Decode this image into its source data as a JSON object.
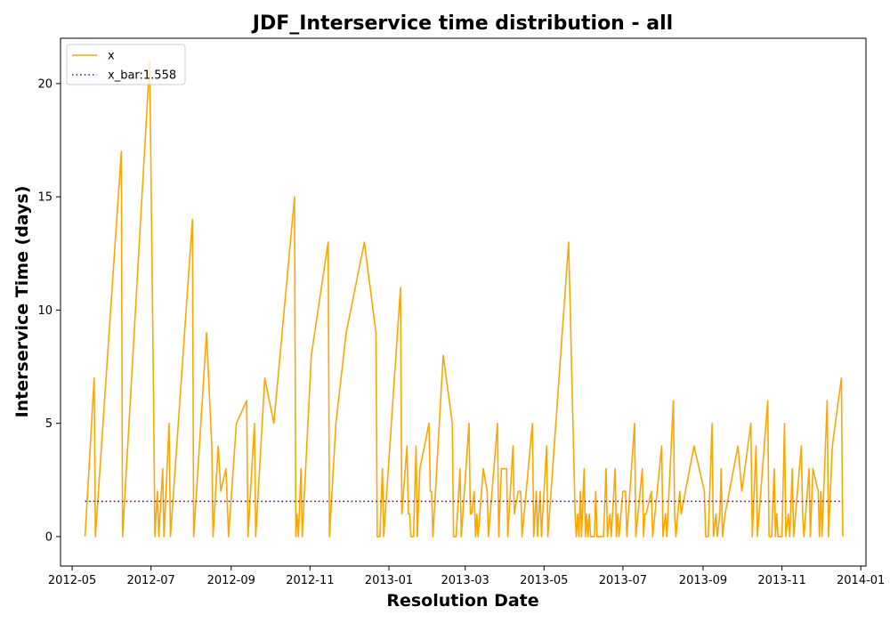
{
  "chart_data": {
    "type": "line",
    "title": "JDF_Interservice time distribution - all",
    "xlabel": "Resolution Date",
    "ylabel": "Interservice Time (days)",
    "xlim": [
      "2012-04-22",
      "2014-01-05"
    ],
    "ylim": [
      -1.3,
      22
    ],
    "x_ticks": [
      "2012-05",
      "2012-07",
      "2012-09",
      "2012-11",
      "2013-01",
      "2013-03",
      "2013-05",
      "2013-07",
      "2013-09",
      "2013-11",
      "2014-01"
    ],
    "y_ticks": [
      0,
      5,
      10,
      15,
      20
    ],
    "grid": false,
    "legend": {
      "position": "top-left",
      "entries": [
        "x",
        "x_bar:1.558"
      ]
    },
    "colors": {
      "x": "#ffa500",
      "x_bar": "#800080"
    },
    "series": [
      {
        "name": "x",
        "style": "solid",
        "points": [
          [
            "2012-05-11",
            0
          ],
          [
            "2012-05-18",
            7
          ],
          [
            "2012-05-19",
            0
          ],
          [
            "2012-06-08",
            17
          ],
          [
            "2012-06-09",
            0
          ],
          [
            "2012-06-30",
            21
          ],
          [
            "2012-07-03",
            6
          ],
          [
            "2012-07-04",
            0
          ],
          [
            "2012-07-06",
            2
          ],
          [
            "2012-07-07",
            0
          ],
          [
            "2012-07-10",
            3
          ],
          [
            "2012-07-11",
            0
          ],
          [
            "2012-07-15",
            5
          ],
          [
            "2012-07-16",
            0
          ],
          [
            "2012-08-02",
            14
          ],
          [
            "2012-08-03",
            0
          ],
          [
            "2012-08-13",
            9
          ],
          [
            "2012-08-17",
            4
          ],
          [
            "2012-08-18",
            0
          ],
          [
            "2012-08-22",
            4
          ],
          [
            "2012-08-24",
            2
          ],
          [
            "2012-08-28",
            3
          ],
          [
            "2012-08-30",
            0
          ],
          [
            "2012-09-05",
            5
          ],
          [
            "2012-09-13",
            6
          ],
          [
            "2012-09-14",
            0
          ],
          [
            "2012-09-19",
            5
          ],
          [
            "2012-09-20",
            0
          ],
          [
            "2012-09-25",
            5
          ],
          [
            "2012-09-27",
            7
          ],
          [
            "2012-10-04",
            5
          ],
          [
            "2012-10-20",
            15
          ],
          [
            "2012-10-21",
            0
          ],
          [
            "2012-10-22",
            1
          ],
          [
            "2012-10-23",
            0
          ],
          [
            "2012-10-25",
            3
          ],
          [
            "2012-10-26",
            0
          ],
          [
            "2012-11-02",
            8
          ],
          [
            "2012-11-15",
            13
          ],
          [
            "2012-11-16",
            0
          ],
          [
            "2012-11-21",
            5
          ],
          [
            "2012-11-29",
            9
          ],
          [
            "2012-12-13",
            13
          ],
          [
            "2012-12-22",
            9
          ],
          [
            "2012-12-23",
            0
          ],
          [
            "2012-12-25",
            0
          ],
          [
            "2012-12-27",
            3
          ],
          [
            "2012-12-28",
            0
          ],
          [
            "2013-01-10",
            11
          ],
          [
            "2013-01-11",
            1
          ],
          [
            "2013-01-15",
            4
          ],
          [
            "2013-01-16",
            1
          ],
          [
            "2013-01-17",
            1
          ],
          [
            "2013-01-18",
            0
          ],
          [
            "2013-01-20",
            0
          ],
          [
            "2013-01-22",
            4
          ],
          [
            "2013-01-23",
            0
          ],
          [
            "2013-01-25",
            3
          ],
          [
            "2013-02-01",
            5
          ],
          [
            "2013-02-02",
            2
          ],
          [
            "2013-02-03",
            2
          ],
          [
            "2013-02-04",
            0
          ],
          [
            "2013-02-12",
            8
          ],
          [
            "2013-02-19",
            5
          ],
          [
            "2013-02-20",
            0
          ],
          [
            "2013-02-22",
            0
          ],
          [
            "2013-02-25",
            3
          ],
          [
            "2013-02-26",
            0
          ],
          [
            "2013-03-04",
            5
          ],
          [
            "2013-03-05",
            1
          ],
          [
            "2013-03-06",
            1
          ],
          [
            "2013-03-08",
            2
          ],
          [
            "2013-03-09",
            0
          ],
          [
            "2013-03-10",
            1
          ],
          [
            "2013-03-11",
            0
          ],
          [
            "2013-03-15",
            3
          ],
          [
            "2013-03-18",
            2
          ],
          [
            "2013-03-19",
            0
          ],
          [
            "2013-03-26",
            5
          ],
          [
            "2013-03-27",
            0
          ],
          [
            "2013-03-29",
            3
          ],
          [
            "2013-04-02",
            3
          ],
          [
            "2013-04-03",
            0
          ],
          [
            "2013-04-07",
            4
          ],
          [
            "2013-04-08",
            1
          ],
          [
            "2013-04-11",
            2
          ],
          [
            "2013-04-13",
            2
          ],
          [
            "2013-04-14",
            0
          ],
          [
            "2013-04-22",
            5
          ],
          [
            "2013-04-23",
            0
          ],
          [
            "2013-04-25",
            2
          ],
          [
            "2013-04-26",
            0
          ],
          [
            "2013-04-28",
            2
          ],
          [
            "2013-04-29",
            0
          ],
          [
            "2013-05-03",
            4
          ],
          [
            "2013-05-04",
            0
          ],
          [
            "2013-05-20",
            13
          ],
          [
            "2013-05-25",
            1
          ],
          [
            "2013-05-26",
            0
          ],
          [
            "2013-05-27",
            1
          ],
          [
            "2013-05-28",
            0
          ],
          [
            "2013-05-29",
            2
          ],
          [
            "2013-05-30",
            0
          ],
          [
            "2013-06-01",
            3
          ],
          [
            "2013-06-02",
            0
          ],
          [
            "2013-06-03",
            1
          ],
          [
            "2013-06-04",
            0
          ],
          [
            "2013-06-05",
            1
          ],
          [
            "2013-06-06",
            0
          ],
          [
            "2013-06-09",
            0
          ],
          [
            "2013-06-10",
            2
          ],
          [
            "2013-06-11",
            0
          ],
          [
            "2013-06-16",
            0
          ],
          [
            "2013-06-18",
            3
          ],
          [
            "2013-06-19",
            0
          ],
          [
            "2013-06-21",
            1
          ],
          [
            "2013-06-22",
            0
          ],
          [
            "2013-06-25",
            3
          ],
          [
            "2013-06-26",
            0
          ],
          [
            "2013-06-27",
            1
          ],
          [
            "2013-06-28",
            0
          ],
          [
            "2013-07-01",
            2
          ],
          [
            "2013-07-03",
            2
          ],
          [
            "2013-07-04",
            0
          ],
          [
            "2013-07-10",
            5
          ],
          [
            "2013-07-11",
            0
          ],
          [
            "2013-07-16",
            3
          ],
          [
            "2013-07-17",
            0
          ],
          [
            "2013-07-18",
            1
          ],
          [
            "2013-07-19",
            1
          ],
          [
            "2013-07-23",
            2
          ],
          [
            "2013-07-24",
            0
          ],
          [
            "2013-07-31",
            4
          ],
          [
            "2013-08-01",
            0
          ],
          [
            "2013-08-03",
            1
          ],
          [
            "2013-08-04",
            0
          ],
          [
            "2013-08-09",
            6
          ],
          [
            "2013-08-10",
            1
          ],
          [
            "2013-08-11",
            0
          ],
          [
            "2013-08-14",
            2
          ],
          [
            "2013-08-15",
            1
          ],
          [
            "2013-08-25",
            4
          ],
          [
            "2013-09-02",
            2
          ],
          [
            "2013-09-03",
            0
          ],
          [
            "2013-09-05",
            0
          ],
          [
            "2013-09-08",
            5
          ],
          [
            "2013-09-09",
            0
          ],
          [
            "2013-09-11",
            1
          ],
          [
            "2013-09-12",
            0
          ],
          [
            "2013-09-14",
            1
          ],
          [
            "2013-09-15",
            3
          ],
          [
            "2013-09-16",
            0
          ],
          [
            "2013-09-18",
            1
          ],
          [
            "2013-09-28",
            4
          ],
          [
            "2013-10-01",
            2
          ],
          [
            "2013-10-08",
            5
          ],
          [
            "2013-10-09",
            0
          ],
          [
            "2013-10-12",
            4
          ],
          [
            "2013-10-13",
            0
          ],
          [
            "2013-10-21",
            6
          ],
          [
            "2013-10-22",
            0
          ],
          [
            "2013-10-24",
            0
          ],
          [
            "2013-10-26",
            3
          ],
          [
            "2013-10-27",
            0
          ],
          [
            "2013-10-28",
            1
          ],
          [
            "2013-10-29",
            0
          ],
          [
            "2013-11-01",
            0
          ],
          [
            "2013-11-03",
            5
          ],
          [
            "2013-11-04",
            0
          ],
          [
            "2013-11-06",
            1
          ],
          [
            "2013-11-07",
            0
          ],
          [
            "2013-11-09",
            3
          ],
          [
            "2013-11-10",
            0
          ],
          [
            "2013-11-16",
            4
          ],
          [
            "2013-11-17",
            1
          ],
          [
            "2013-11-18",
            0
          ],
          [
            "2013-11-22",
            3
          ],
          [
            "2013-11-23",
            0
          ],
          [
            "2013-11-25",
            3
          ],
          [
            "2013-11-29",
            2
          ],
          [
            "2013-11-30",
            0
          ],
          [
            "2013-12-01",
            2
          ],
          [
            "2013-12-02",
            0
          ],
          [
            "2013-12-06",
            6
          ],
          [
            "2013-12-07",
            0
          ],
          [
            "2013-12-10",
            4
          ],
          [
            "2013-12-17",
            7
          ],
          [
            "2013-12-18",
            0
          ]
        ]
      },
      {
        "name": "x_bar:1.558",
        "style": "dotted",
        "points": [
          [
            "2012-05-11",
            1.558
          ],
          [
            "2013-12-18",
            1.558
          ]
        ]
      }
    ]
  }
}
